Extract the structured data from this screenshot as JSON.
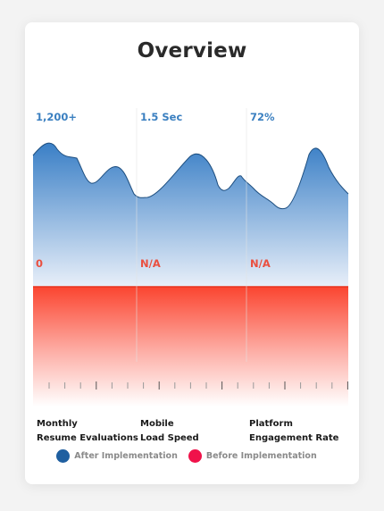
{
  "card": {
    "title": "Overview"
  },
  "chart_data": {
    "type": "area",
    "categories": [
      "Monthly\nResume Evaluations",
      "Mobile\nLoad Speed",
      "Platform\nEngagement Rate"
    ],
    "series": [
      {
        "name": "After Implementation",
        "labels": [
          "1,200+",
          "1.5 Sec",
          "72%"
        ],
        "color": "#1f5fa0"
      },
      {
        "name": "Before Implementation",
        "labels": [
          "0",
          "N/A",
          "N/A"
        ],
        "color": "#f0124a"
      }
    ],
    "colors": {
      "after_top": "#3a7fc6",
      "after_bottom": "#e6eef9",
      "before_top": "#fb4530",
      "before_bottom": "#ffffff",
      "after_text": "#3a7fc0",
      "before_text": "#ea4f3f"
    },
    "grid": false,
    "legend_position": "bottom"
  }
}
